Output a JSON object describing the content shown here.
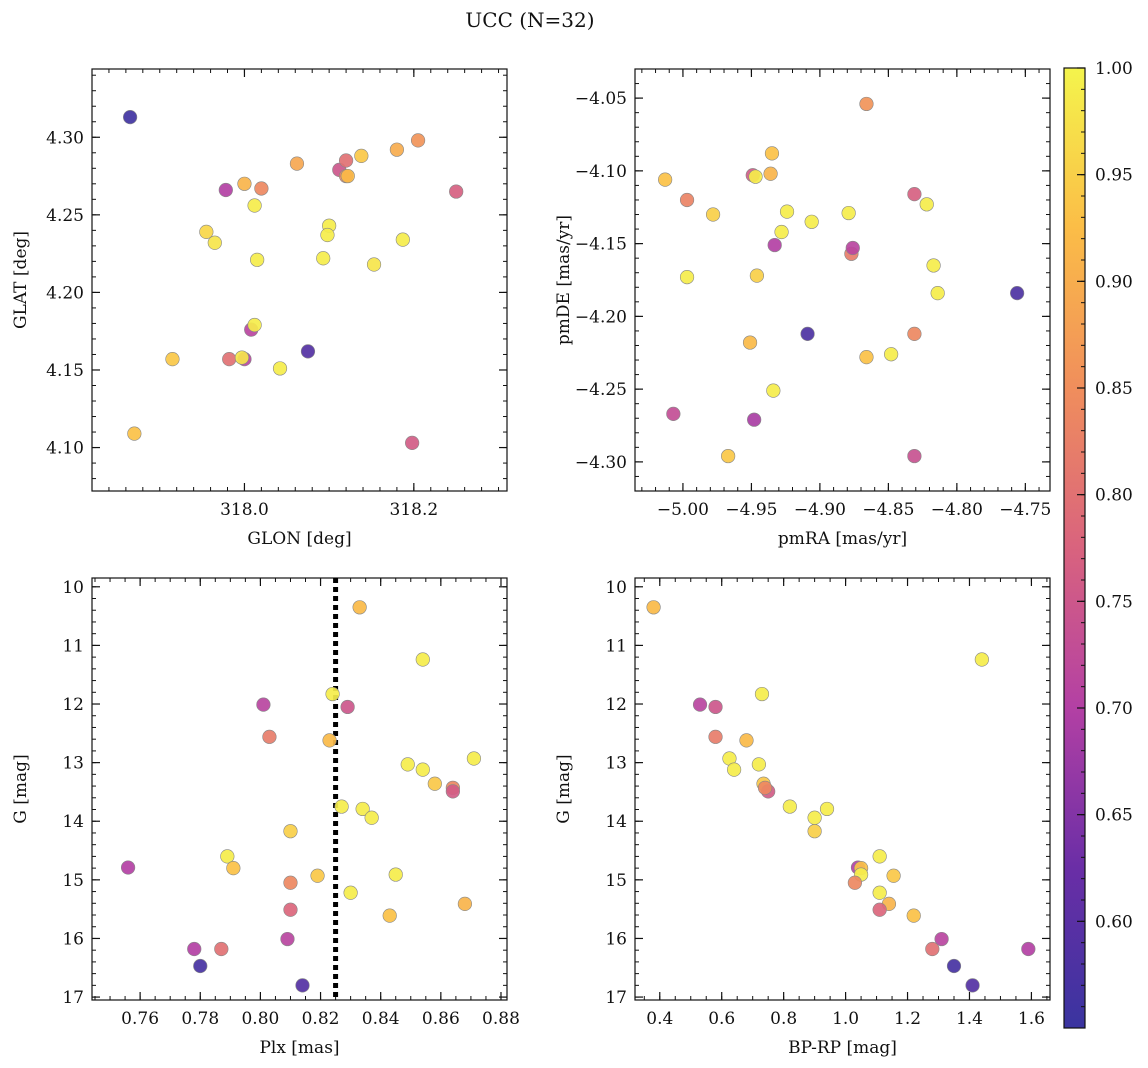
{
  "figure_title": "UCC (N=32)",
  "colors": {
    "cmap_stops": [
      "#3a34a0",
      "#6a2ea6",
      "#b340a4",
      "#d9637e",
      "#f08e5c",
      "#fbbd47",
      "#f4f44c"
    ],
    "marker_edge": "#888888",
    "vline": "#000000"
  },
  "colorbar": {
    "range": [
      0.55,
      1.0
    ],
    "ticks": [
      0.6,
      0.65,
      0.7,
      0.75,
      0.8,
      0.85,
      0.9,
      0.95,
      1.0
    ],
    "tick_labels": [
      "0.60",
      "0.65",
      "0.70",
      "0.75",
      "0.80",
      "0.85",
      "0.90",
      "0.95",
      "1.00"
    ]
  },
  "chart_data": [
    {
      "type": "scatter",
      "name": "glon-glat",
      "xlabel": "GLON [deg]",
      "ylabel": "GLAT [deg]",
      "xlim": [
        317.82,
        318.31
      ],
      "ylim": [
        4.072,
        4.344
      ],
      "xticks": [
        318.0,
        318.2
      ],
      "xtick_labels": [
        "318.0",
        "318.2"
      ],
      "xminor": 0.02,
      "yticks": [
        4.1,
        4.15,
        4.2,
        4.25,
        4.3
      ],
      "ytick_labels": [
        "4.10",
        "4.15",
        "4.20",
        "4.25",
        "4.30"
      ],
      "yminor": 0.01,
      "y_inverted": false,
      "points": [
        {
          "x": 317.865,
          "y": 4.313,
          "c": 0.56
        },
        {
          "x": 317.87,
          "y": 4.109,
          "c": 0.93
        },
        {
          "x": 317.915,
          "y": 4.157,
          "c": 0.94
        },
        {
          "x": 317.955,
          "y": 4.239,
          "c": 0.96
        },
        {
          "x": 317.965,
          "y": 4.232,
          "c": 0.98
        },
        {
          "x": 317.978,
          "y": 4.266,
          "c": 0.7
        },
        {
          "x": 317.982,
          "y": 4.157,
          "c": 0.8
        },
        {
          "x": 318.0,
          "y": 4.157,
          "c": 0.71
        },
        {
          "x": 317.997,
          "y": 4.158,
          "c": 0.98
        },
        {
          "x": 318.0,
          "y": 4.27,
          "c": 0.91
        },
        {
          "x": 318.008,
          "y": 4.176,
          "c": 0.71
        },
        {
          "x": 318.012,
          "y": 4.179,
          "c": 0.99
        },
        {
          "x": 318.012,
          "y": 4.256,
          "c": 0.99
        },
        {
          "x": 318.015,
          "y": 4.221,
          "c": 0.99
        },
        {
          "x": 318.02,
          "y": 4.267,
          "c": 0.84
        },
        {
          "x": 318.042,
          "y": 4.151,
          "c": 0.99
        },
        {
          "x": 318.062,
          "y": 4.283,
          "c": 0.89
        },
        {
          "x": 318.075,
          "y": 4.162,
          "c": 0.59
        },
        {
          "x": 318.093,
          "y": 4.222,
          "c": 0.99
        },
        {
          "x": 318.1,
          "y": 4.243,
          "c": 0.99
        },
        {
          "x": 318.098,
          "y": 4.237,
          "c": 0.99
        },
        {
          "x": 318.112,
          "y": 4.279,
          "c": 0.75
        },
        {
          "x": 318.12,
          "y": 4.275,
          "c": 0.84
        },
        {
          "x": 318.12,
          "y": 4.285,
          "c": 0.8
        },
        {
          "x": 318.122,
          "y": 4.275,
          "c": 0.92
        },
        {
          "x": 318.138,
          "y": 4.288,
          "c": 0.94
        },
        {
          "x": 318.153,
          "y": 4.218,
          "c": 0.98
        },
        {
          "x": 318.18,
          "y": 4.292,
          "c": 0.9
        },
        {
          "x": 318.187,
          "y": 4.234,
          "c": 0.99
        },
        {
          "x": 318.198,
          "y": 4.103,
          "c": 0.76
        },
        {
          "x": 318.205,
          "y": 4.298,
          "c": 0.86
        },
        {
          "x": 318.25,
          "y": 4.265,
          "c": 0.77
        }
      ]
    },
    {
      "type": "scatter",
      "name": "pmra-pmde",
      "xlabel": "pmRA [mas/yr]",
      "ylabel": "pmDE [mas/yr]",
      "xlim": [
        -5.035,
        -4.732
      ],
      "ylim": [
        -4.32,
        -4.03
      ],
      "xticks": [
        -5.0,
        -4.95,
        -4.9,
        -4.85,
        -4.8,
        -4.75
      ],
      "xtick_labels": [
        "−5.00",
        "−4.95",
        "−4.90",
        "−4.85",
        "−4.80",
        "−4.75"
      ],
      "xminor": 0.01,
      "yticks": [
        -4.3,
        -4.25,
        -4.2,
        -4.15,
        -4.1,
        -4.05
      ],
      "ytick_labels": [
        "−4.30",
        "−4.25",
        "−4.20",
        "−4.15",
        "−4.10",
        "−4.05"
      ],
      "yminor": 0.01,
      "y_inverted": false,
      "points": [
        {
          "x": -5.013,
          "y": -4.106,
          "c": 0.93
        },
        {
          "x": -5.007,
          "y": -4.267,
          "c": 0.73
        },
        {
          "x": -4.997,
          "y": -4.12,
          "c": 0.83
        },
        {
          "x": -4.997,
          "y": -4.173,
          "c": 0.99
        },
        {
          "x": -4.978,
          "y": -4.13,
          "c": 0.95
        },
        {
          "x": -4.967,
          "y": -4.296,
          "c": 0.94
        },
        {
          "x": -4.951,
          "y": -4.218,
          "c": 0.92
        },
        {
          "x": -4.949,
          "y": -4.103,
          "c": 0.76
        },
        {
          "x": -4.948,
          "y": -4.271,
          "c": 0.69
        },
        {
          "x": -4.947,
          "y": -4.104,
          "c": 0.99
        },
        {
          "x": -4.946,
          "y": -4.172,
          "c": 0.95
        },
        {
          "x": -4.936,
          "y": -4.102,
          "c": 0.91
        },
        {
          "x": -4.935,
          "y": -4.088,
          "c": 0.93
        },
        {
          "x": -4.934,
          "y": -4.251,
          "c": 0.99
        },
        {
          "x": -4.933,
          "y": -4.151,
          "c": 0.7
        },
        {
          "x": -4.928,
          "y": -4.142,
          "c": 0.99
        },
        {
          "x": -4.924,
          "y": -4.128,
          "c": 0.99
        },
        {
          "x": -4.909,
          "y": -4.212,
          "c": 0.58
        },
        {
          "x": -4.906,
          "y": -4.135,
          "c": 0.99
        },
        {
          "x": -4.879,
          "y": -4.129,
          "c": 0.99
        },
        {
          "x": -4.877,
          "y": -4.157,
          "c": 0.82
        },
        {
          "x": -4.876,
          "y": -4.153,
          "c": 0.71
        },
        {
          "x": -4.866,
          "y": -4.054,
          "c": 0.86
        },
        {
          "x": -4.866,
          "y": -4.228,
          "c": 0.93
        },
        {
          "x": -4.848,
          "y": -4.226,
          "c": 0.99
        },
        {
          "x": -4.831,
          "y": -4.116,
          "c": 0.77
        },
        {
          "x": -4.831,
          "y": -4.212,
          "c": 0.84
        },
        {
          "x": -4.831,
          "y": -4.296,
          "c": 0.74
        },
        {
          "x": -4.822,
          "y": -4.123,
          "c": 0.99
        },
        {
          "x": -4.817,
          "y": -4.165,
          "c": 0.99
        },
        {
          "x": -4.814,
          "y": -4.184,
          "c": 0.99
        },
        {
          "x": -4.756,
          "y": -4.184,
          "c": 0.58
        }
      ]
    },
    {
      "type": "scatter",
      "name": "plx-g",
      "xlabel": "Plx [mas]",
      "ylabel": "G [mag]",
      "xlim": [
        0.744,
        0.882
      ],
      "ylim": [
        17.05,
        9.85
      ],
      "xticks": [
        0.76,
        0.78,
        0.8,
        0.82,
        0.84,
        0.86,
        0.88
      ],
      "xtick_labels": [
        "0.76",
        "0.78",
        "0.80",
        "0.82",
        "0.84",
        "0.86",
        "0.88"
      ],
      "xminor": 0.005,
      "yticks": [
        10,
        11,
        12,
        13,
        14,
        15,
        16,
        17
      ],
      "ytick_labels": [
        "10",
        "11",
        "12",
        "13",
        "14",
        "15",
        "16",
        "17"
      ],
      "yminor": 0.2,
      "y_inverted": true,
      "vline": 0.825,
      "points": [
        {
          "x": 0.756,
          "y": 14.79,
          "c": 0.7
        },
        {
          "x": 0.778,
          "y": 16.18,
          "c": 0.7
        },
        {
          "x": 0.78,
          "y": 16.47,
          "c": 0.57
        },
        {
          "x": 0.787,
          "y": 16.18,
          "c": 0.8
        },
        {
          "x": 0.789,
          "y": 14.6,
          "c": 0.99
        },
        {
          "x": 0.791,
          "y": 14.8,
          "c": 0.93
        },
        {
          "x": 0.801,
          "y": 12.01,
          "c": 0.71
        },
        {
          "x": 0.803,
          "y": 12.56,
          "c": 0.82
        },
        {
          "x": 0.809,
          "y": 16.01,
          "c": 0.71
        },
        {
          "x": 0.81,
          "y": 14.17,
          "c": 0.95
        },
        {
          "x": 0.81,
          "y": 15.05,
          "c": 0.84
        },
        {
          "x": 0.81,
          "y": 15.51,
          "c": 0.78
        },
        {
          "x": 0.814,
          "y": 16.8,
          "c": 0.59
        },
        {
          "x": 0.819,
          "y": 14.93,
          "c": 0.94
        },
        {
          "x": 0.823,
          "y": 12.62,
          "c": 0.92
        },
        {
          "x": 0.824,
          "y": 11.83,
          "c": 0.99
        },
        {
          "x": 0.827,
          "y": 13.75,
          "c": 0.99
        },
        {
          "x": 0.829,
          "y": 12.05,
          "c": 0.75
        },
        {
          "x": 0.83,
          "y": 15.22,
          "c": 0.99
        },
        {
          "x": 0.833,
          "y": 10.35,
          "c": 0.92
        },
        {
          "x": 0.834,
          "y": 13.79,
          "c": 0.99
        },
        {
          "x": 0.837,
          "y": 13.94,
          "c": 0.99
        },
        {
          "x": 0.843,
          "y": 15.61,
          "c": 0.93
        },
        {
          "x": 0.845,
          "y": 14.91,
          "c": 0.99
        },
        {
          "x": 0.849,
          "y": 13.03,
          "c": 0.99
        },
        {
          "x": 0.854,
          "y": 11.24,
          "c": 0.99
        },
        {
          "x": 0.854,
          "y": 13.12,
          "c": 0.99
        },
        {
          "x": 0.858,
          "y": 13.36,
          "c": 0.94
        },
        {
          "x": 0.864,
          "y": 13.43,
          "c": 0.84
        },
        {
          "x": 0.864,
          "y": 13.49,
          "c": 0.76
        },
        {
          "x": 0.868,
          "y": 15.41,
          "c": 0.91
        },
        {
          "x": 0.871,
          "y": 12.93,
          "c": 0.99
        }
      ]
    },
    {
      "type": "scatter",
      "name": "bprp-g",
      "xlabel": "BP-RP [mag]",
      "ylabel": "G [mag]",
      "xlim": [
        0.32,
        1.66
      ],
      "ylim": [
        17.05,
        9.85
      ],
      "xticks": [
        0.4,
        0.6,
        0.8,
        1.0,
        1.2,
        1.4,
        1.6
      ],
      "xtick_labels": [
        "0.4",
        "0.6",
        "0.8",
        "1.0",
        "1.2",
        "1.4",
        "1.6"
      ],
      "xminor": 0.05,
      "yticks": [
        10,
        11,
        12,
        13,
        14,
        15,
        16,
        17
      ],
      "ytick_labels": [
        "10",
        "11",
        "12",
        "13",
        "14",
        "15",
        "16",
        "17"
      ],
      "yminor": 0.2,
      "y_inverted": true,
      "points": [
        {
          "x": 0.38,
          "y": 10.35,
          "c": 0.92
        },
        {
          "x": 0.53,
          "y": 12.01,
          "c": 0.71
        },
        {
          "x": 0.58,
          "y": 12.05,
          "c": 0.75
        },
        {
          "x": 0.58,
          "y": 12.56,
          "c": 0.82
        },
        {
          "x": 0.625,
          "y": 12.93,
          "c": 0.99
        },
        {
          "x": 0.64,
          "y": 13.12,
          "c": 0.99
        },
        {
          "x": 0.68,
          "y": 12.62,
          "c": 0.92
        },
        {
          "x": 0.72,
          "y": 13.03,
          "c": 0.99
        },
        {
          "x": 0.73,
          "y": 11.83,
          "c": 0.99
        },
        {
          "x": 0.735,
          "y": 13.36,
          "c": 0.94
        },
        {
          "x": 0.75,
          "y": 13.49,
          "c": 0.76
        },
        {
          "x": 0.74,
          "y": 13.43,
          "c": 0.84
        },
        {
          "x": 0.82,
          "y": 13.75,
          "c": 0.99
        },
        {
          "x": 0.9,
          "y": 13.94,
          "c": 0.99
        },
        {
          "x": 0.94,
          "y": 13.79,
          "c": 0.99
        },
        {
          "x": 0.9,
          "y": 14.17,
          "c": 0.95
        },
        {
          "x": 1.04,
          "y": 14.79,
          "c": 0.7
        },
        {
          "x": 1.05,
          "y": 14.8,
          "c": 0.93
        },
        {
          "x": 1.05,
          "y": 14.91,
          "c": 0.99
        },
        {
          "x": 1.11,
          "y": 14.6,
          "c": 0.99
        },
        {
          "x": 1.11,
          "y": 15.22,
          "c": 0.99
        },
        {
          "x": 1.03,
          "y": 15.05,
          "c": 0.84
        },
        {
          "x": 1.155,
          "y": 14.93,
          "c": 0.94
        },
        {
          "x": 1.14,
          "y": 15.41,
          "c": 0.91
        },
        {
          "x": 1.11,
          "y": 15.51,
          "c": 0.78
        },
        {
          "x": 1.22,
          "y": 15.61,
          "c": 0.93
        },
        {
          "x": 1.31,
          "y": 16.01,
          "c": 0.71
        },
        {
          "x": 1.28,
          "y": 16.18,
          "c": 0.8
        },
        {
          "x": 1.35,
          "y": 16.47,
          "c": 0.57
        },
        {
          "x": 1.41,
          "y": 16.8,
          "c": 0.59
        },
        {
          "x": 1.44,
          "y": 11.24,
          "c": 0.99
        },
        {
          "x": 1.59,
          "y": 16.18,
          "c": 0.7
        }
      ]
    }
  ]
}
